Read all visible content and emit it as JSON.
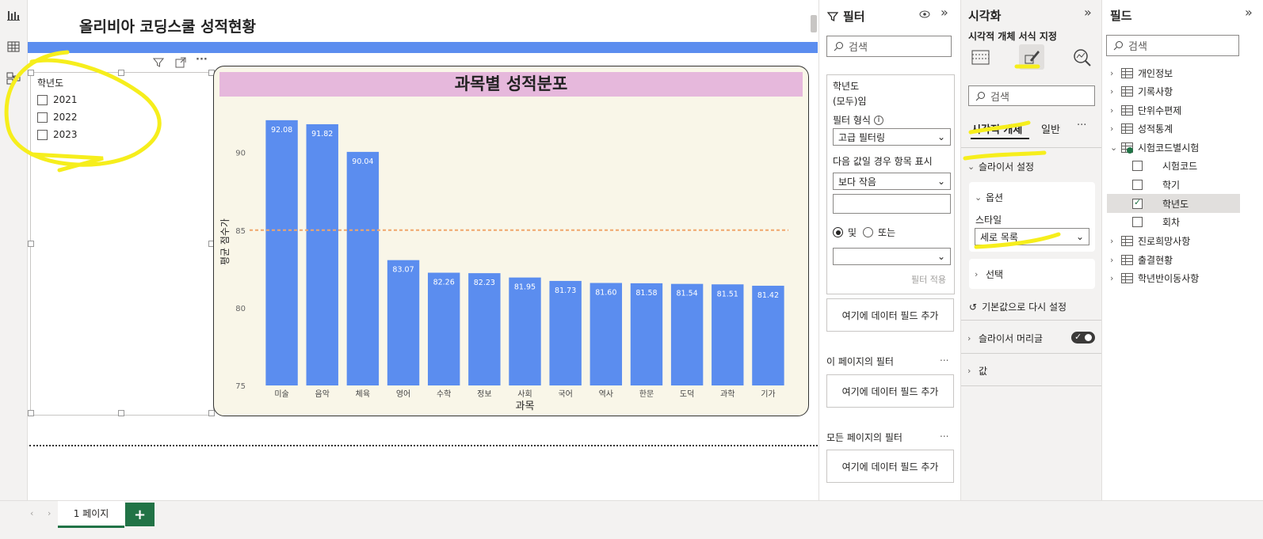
{
  "report": {
    "title": "올리비아 코딩스쿨 성적현황"
  },
  "slicer": {
    "header": "학년도",
    "items": [
      "2021",
      "2022",
      "2023"
    ]
  },
  "chart_data": {
    "type": "bar",
    "title": "과목별 성적분포",
    "xlabel": "과목",
    "ylabel": "평균 점수가",
    "categories": [
      "미술",
      "음악",
      "체육",
      "영어",
      "수학",
      "정보",
      "사회",
      "국어",
      "역사",
      "한문",
      "도덕",
      "과학",
      "기가"
    ],
    "values": [
      92.08,
      91.82,
      90.04,
      83.07,
      82.26,
      82.23,
      81.95,
      81.73,
      81.6,
      81.58,
      81.54,
      81.51,
      81.42
    ],
    "value_labels": [
      "92.08",
      "91.82",
      "90.04",
      "83.07",
      "82.26",
      "82.23",
      "81.95",
      "81.73",
      "81.60",
      "81.58",
      "81.54",
      "81.51",
      "81.42"
    ],
    "yticks": [
      "75",
      "80",
      "85",
      "90"
    ],
    "ylim": [
      75,
      93.5
    ],
    "reference_line": 85,
    "bar_color": "#5b8def",
    "reference_color": "#f0a66b",
    "grid": false
  },
  "filters": {
    "title": "필터",
    "search_placeholder": "검색",
    "card": {
      "field": "학년도",
      "state": "(모두)임",
      "filter_type_label": "필터 형식",
      "filter_type_value": "고급 필터링",
      "show_items_label": "다음 값일 경우 항목 표시",
      "condition_value": "보다 작음",
      "and_label": "및",
      "or_label": "또는",
      "apply_label": "필터 적용"
    },
    "add_field_label": "여기에 데이터 필드 추가",
    "page_filters_label": "이 페이지의 필터",
    "all_pages_filters_label": "모든 페이지의 필터",
    "more": "..."
  },
  "visualizations": {
    "title": "시각화",
    "subtitle": "시각적 개체 서식 지정",
    "search_placeholder": "검색",
    "tabs": [
      "시각적 개체",
      "일반"
    ],
    "more": "···",
    "slicer_settings": "슬라이서 설정",
    "options": "옵션",
    "style_label": "스타일",
    "style_value": "세로 목록",
    "selection": "선택",
    "reset": "기본값으로 다시 설정",
    "slicer_header": "슬라이서 머리글",
    "values": "값"
  },
  "fields": {
    "title": "필드",
    "search_placeholder": "검색",
    "tables": [
      "개인정보",
      "기록사항",
      "단위수편제",
      "성적통계",
      "시험코드별시험",
      "진로희망사항",
      "출결현황",
      "학년반이동사항"
    ],
    "expanded_fields": [
      {
        "name": "시험코드",
        "checked": false
      },
      {
        "name": "학기",
        "checked": false
      },
      {
        "name": "학년도",
        "checked": true
      },
      {
        "name": "회차",
        "checked": false
      }
    ]
  },
  "pages": {
    "tabs": [
      "1 페이지"
    ],
    "add": "+"
  },
  "colors": {
    "accent_yellow": "#f6ee1c",
    "title_bar": "#e6b8dc",
    "chart_bg": "#f9f6e8",
    "add_page": "#217346"
  }
}
